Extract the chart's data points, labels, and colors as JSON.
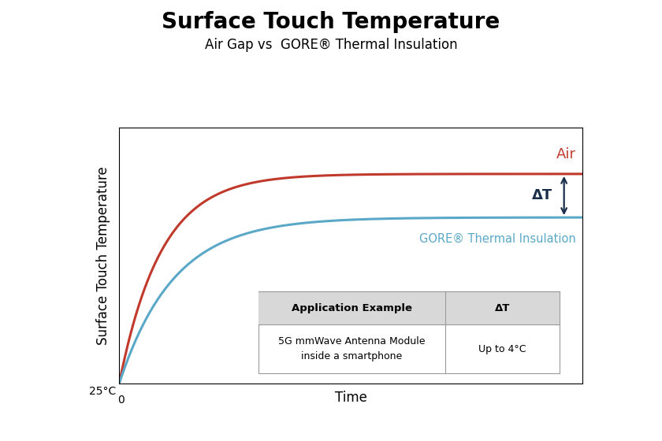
{
  "title": "Surface Touch Temperature",
  "subtitle": "Air Gap vs  GORE® Thermal Insulation",
  "xlabel": "Time",
  "ylabel": "Surface Touch Temperature",
  "x_start_label": "0",
  "y_start_label": "25°C",
  "air_color": "#c0392b",
  "gore_color": "#5aa8c8",
  "arrow_color": "#1a2e4a",
  "title_fontsize": 20,
  "subtitle_fontsize": 12,
  "axis_label_fontsize": 11,
  "air_label": "Air",
  "gore_label": "GORE® Thermal Insulation",
  "delta_t_label": "ΔT",
  "table_col1_header": "Application Example",
  "table_col2_header": "ΔT",
  "table_col1_data": "5G mmWave Antenna Module\ninside a smartphone",
  "table_col2_data": "Up to 4°C",
  "background_color": "#ffffff",
  "plot_bg_color": "#ffffff",
  "air_max": 0.82,
  "air_rate": 1.1,
  "gore_max": 0.65,
  "gore_rate": 0.85
}
